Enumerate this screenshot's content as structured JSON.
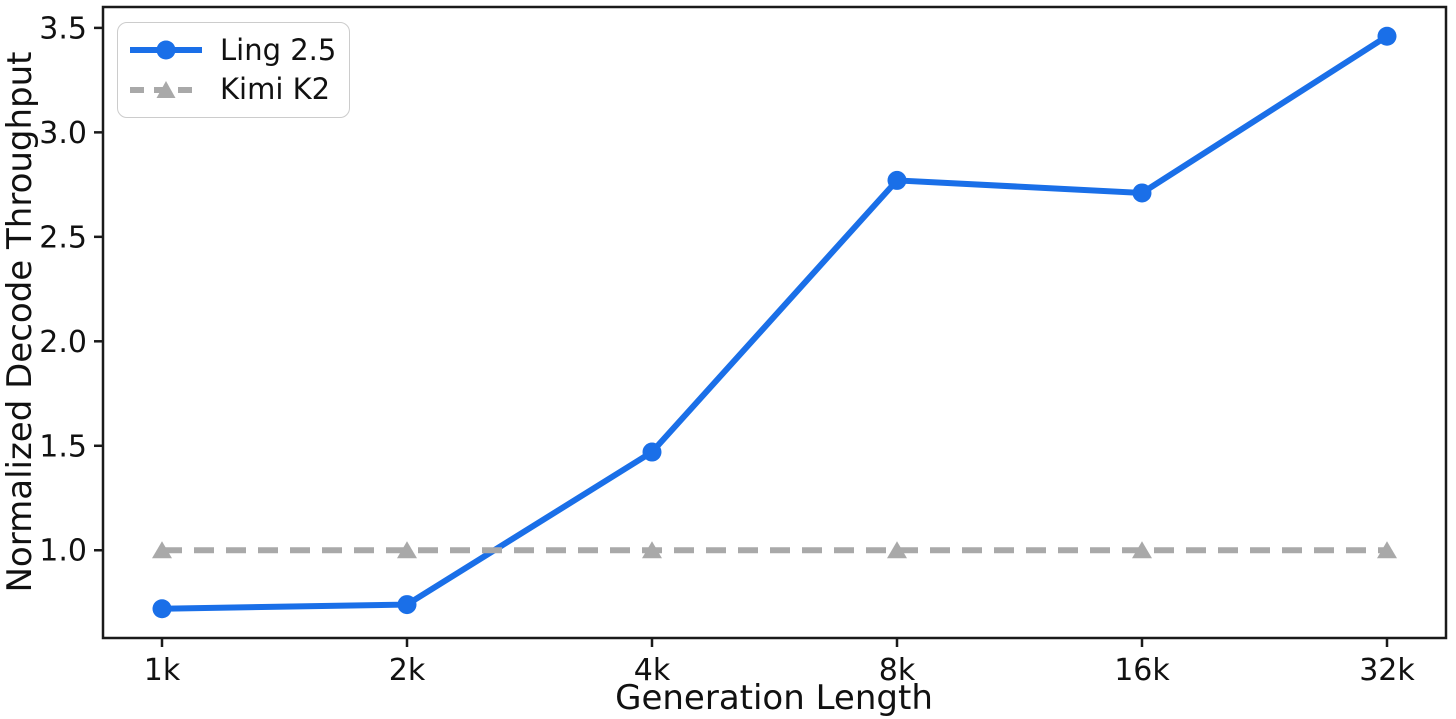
{
  "chart_data": {
    "type": "line",
    "title": "",
    "xlabel": "Generation Length",
    "ylabel": "Normalized Decode Throughput",
    "categories": [
      "1k",
      "2k",
      "4k",
      "8k",
      "16k",
      "32k"
    ],
    "series": [
      {
        "name": "Ling 2.5",
        "values": [
          0.72,
          0.74,
          1.47,
          2.77,
          2.71,
          3.46
        ],
        "color": "#1a6fe8",
        "line_style": "solid",
        "marker": "circle"
      },
      {
        "name": "Kimi K2",
        "values": [
          1.0,
          1.0,
          1.0,
          1.0,
          1.0,
          1.0
        ],
        "color": "#a9a9a9",
        "line_style": "dashed",
        "marker": "triangle"
      }
    ],
    "ylim": [
      0.58,
      3.6
    ],
    "yticks": [
      1.0,
      1.5,
      2.0,
      2.5,
      3.0,
      3.5
    ],
    "ytick_labels": [
      "1.0",
      "1.5",
      "2.0",
      "2.5",
      "3.0",
      "3.5"
    ],
    "legend_position": "upper left",
    "grid": false,
    "axis_color": "#1a1a1a",
    "text_color": "#111111",
    "background_color": "#ffffff"
  }
}
